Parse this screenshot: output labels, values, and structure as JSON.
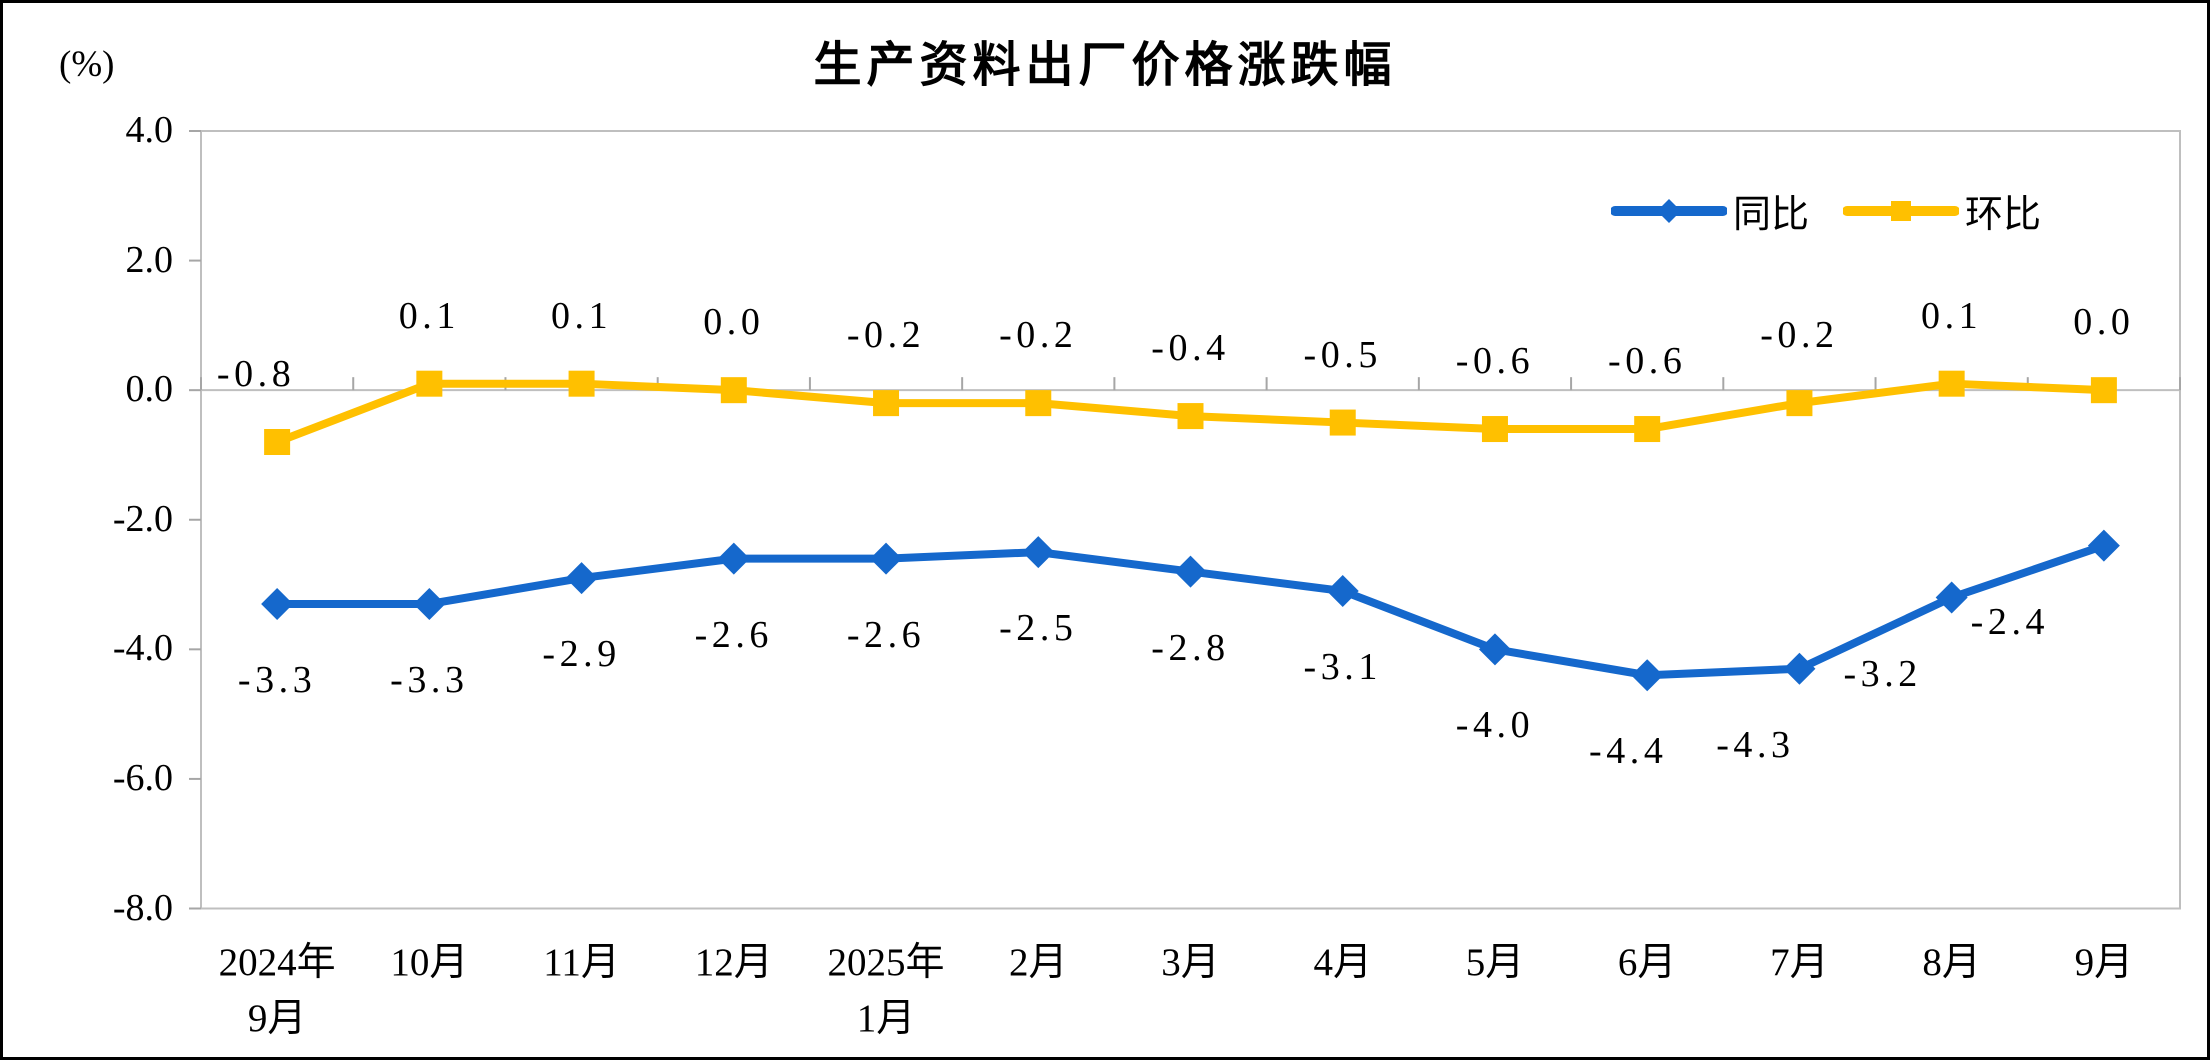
{
  "chart_data": {
    "type": "line",
    "title": "生产资料出厂价格涨跌幅",
    "unit_label": "(%)",
    "x_categories": [
      [
        "2024年",
        "9月"
      ],
      [
        "10月"
      ],
      [
        "11月"
      ],
      [
        "12月"
      ],
      [
        "2025年",
        "1月"
      ],
      [
        "2月"
      ],
      [
        "3月"
      ],
      [
        "4月"
      ],
      [
        "5月"
      ],
      [
        "6月"
      ],
      [
        "7月"
      ],
      [
        "8月"
      ],
      [
        "9月"
      ]
    ],
    "series": [
      {
        "name": "同比",
        "color": "#1568CC",
        "marker": "diamond",
        "label_position": "below",
        "values": [
          -3.3,
          -3.3,
          -2.9,
          -2.6,
          -2.6,
          -2.5,
          -2.8,
          -3.1,
          -4.0,
          -4.4,
          -4.3,
          -3.2,
          -2.4
        ],
        "labels": [
          "-3.3",
          "-3.3",
          "-2.9",
          "-2.6",
          "-2.6",
          "-2.5",
          "-2.8",
          "-3.1",
          "-4.0",
          "-4.4",
          "-4.3",
          "-3.2",
          "-2.4"
        ]
      },
      {
        "name": "环比",
        "color": "#FFC000",
        "marker": "square",
        "label_position": "above",
        "values": [
          -0.8,
          0.1,
          0.1,
          0.0,
          -0.2,
          -0.2,
          -0.4,
          -0.5,
          -0.6,
          -0.6,
          -0.2,
          0.1,
          0.0
        ],
        "labels": [
          "-0.8",
          "0.1",
          "0.1",
          "0.0",
          "-0.2",
          "-0.2",
          "-0.4",
          "-0.5",
          "-0.6",
          "-0.6",
          "-0.2",
          "0.1",
          "0.0"
        ]
      }
    ],
    "y_ticks": [
      "4.0",
      "2.0",
      "0.0",
      "-2.0",
      "-4.0",
      "-6.0",
      "-8.0"
    ],
    "y_axis": {
      "min": -8.0,
      "max": 4.0,
      "step": 2.0
    },
    "legend": [
      "同比",
      "环比"
    ],
    "legend_position": "inside-top-right",
    "gridlines": "zero-line-only",
    "axis_color": "#BFBFBF"
  }
}
